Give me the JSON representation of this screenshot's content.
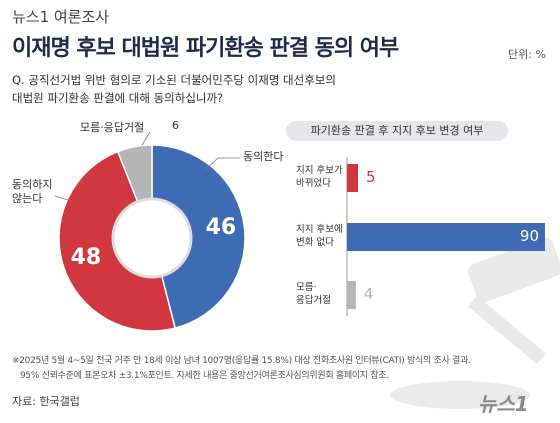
{
  "header": {
    "brand": "뉴스1 여론조사",
    "title": "이재명 후보 대법원 파기환송 판결 동의 여부",
    "unit": "단위: %",
    "question": [
      "Q. 공직선거법 위반 혐의로 기소된 더불어민주당 이재명 대선후보의",
      "대법원 파기환송 판결에 대해 동의하십니까?"
    ]
  },
  "footer": {
    "notes": [
      "※2025년 5월 4~5일 전국 거주 만 18세 이상 남녀 1007명(응답률 15.8%) 대상 전화조사원 인터뷰(CATI) 방식의 조사 결과.",
      "95% 신뢰수준에 표본오차 ±3.1%포인트. 자세한 내용은 중앙선거여론조사심의위원회 홈페이지 참조."
    ],
    "source": "자료: 한국갤럽",
    "logo": "뉴스1"
  },
  "chart_data": [
    {
      "type": "donut",
      "categories": [
        "동의한다",
        "동의하지\n않는다",
        "모름·응답거절"
      ],
      "values": [
        46,
        48,
        6
      ],
      "colors": [
        "#3d6cb5",
        "#d1373e",
        "#b5b5b5"
      ]
    },
    {
      "type": "hbar",
      "title": "파기환송 판결 후 지지 후보 변경 여부",
      "categories": [
        "지지 후보가\n바뀌었다",
        "지지 후보에\n변화 없다",
        "모름·\n응답거절"
      ],
      "values": [
        5,
        90,
        4
      ],
      "colors": [
        "#d1373e",
        "#3d6cb5",
        "#b5b5b5"
      ],
      "xlim": [
        0,
        95
      ]
    }
  ]
}
